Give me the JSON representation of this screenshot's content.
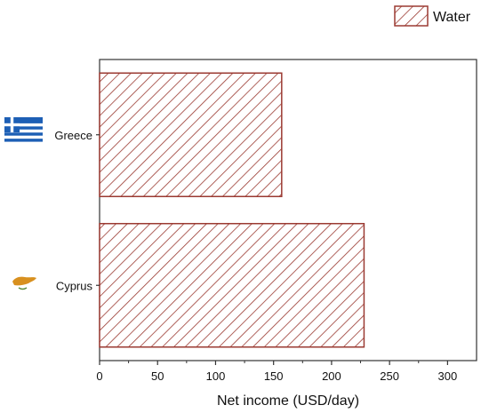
{
  "chart_data": {
    "type": "bar",
    "orientation": "horizontal",
    "categories": [
      "Greece",
      "Cyprus"
    ],
    "category_icons": [
      "greece-flag-icon",
      "cyprus-flag-icon"
    ],
    "series": [
      {
        "name": "Water",
        "values": [
          157,
          228
        ]
      }
    ],
    "xlabel": "Net income (USD/day)",
    "ylabel": "",
    "xlim": [
      0,
      325
    ],
    "xticks": [
      0,
      50,
      100,
      150,
      200,
      250,
      300
    ],
    "bar_fill": "hatched",
    "bar_color": "#9b3a32",
    "legend_position": "top-right",
    "grid": false
  }
}
